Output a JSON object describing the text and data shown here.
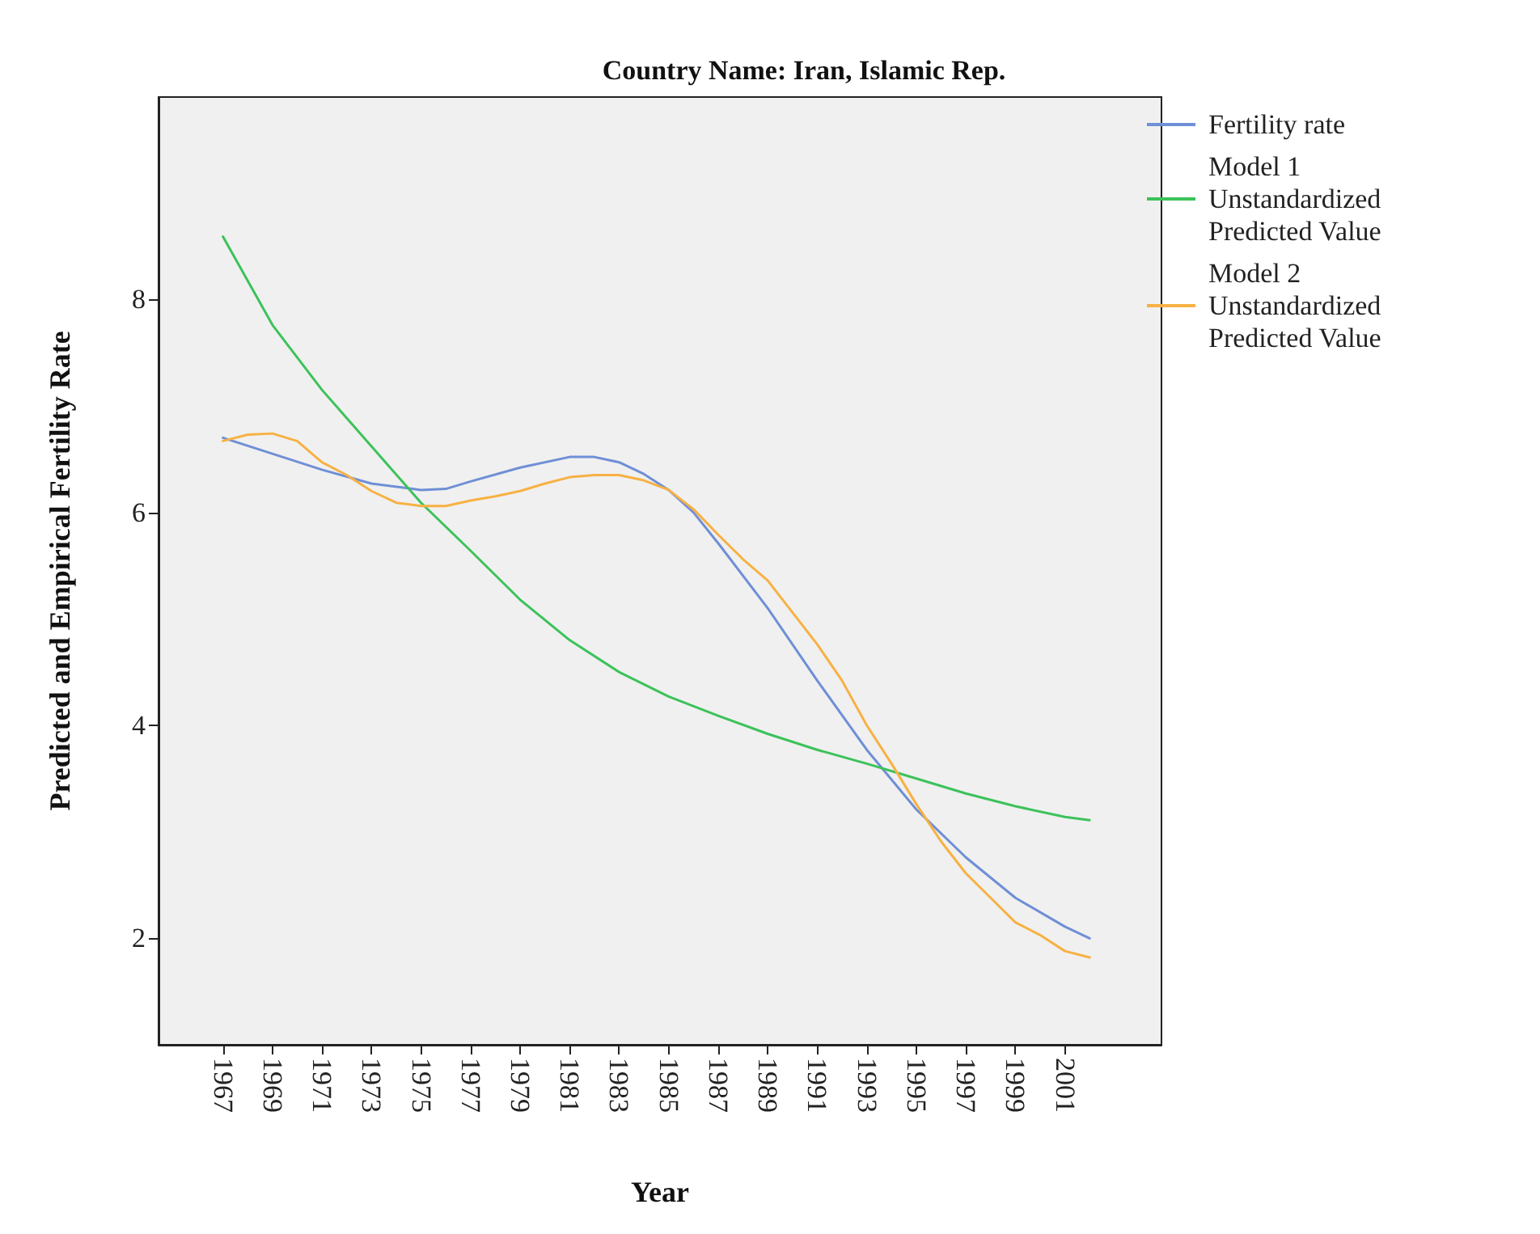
{
  "chart_data": {
    "type": "line",
    "title": "Country Name: Iran, Islamic Rep.",
    "xlabel": "Year",
    "ylabel": "Predicted and Empirical Fertility Rate",
    "xlim": [
      1964.4,
      2004.9
    ],
    "xticks": [
      1967,
      1969,
      1971,
      1973,
      1975,
      1977,
      1979,
      1981,
      1983,
      1985,
      1987,
      1989,
      1991,
      1993,
      1995,
      1997,
      1999,
      2001
    ],
    "ylim": [
      1,
      9.9
    ],
    "yticks": [
      2,
      4,
      6,
      8
    ],
    "grid": false,
    "legend": "top right",
    "marker": "none",
    "line_style": "solid",
    "series": [
      {
        "name": "Fertility rate",
        "color": "#6f8fd6",
        "x": [
          1967,
          1969,
          1971,
          1973,
          1975,
          1976,
          1977,
          1979,
          1981,
          1982,
          1983,
          1984,
          1985,
          1986,
          1987,
          1989,
          1991,
          1993,
          1995,
          1997,
          1999,
          2001,
          2002
        ],
        "values": [
          6.7,
          6.55,
          6.4,
          6.27,
          6.21,
          6.22,
          6.29,
          6.42,
          6.52,
          6.52,
          6.47,
          6.36,
          6.21,
          6.0,
          5.71,
          5.1,
          4.42,
          3.77,
          3.21,
          2.76,
          2.38,
          2.11,
          2.0
        ]
      },
      {
        "name": "Model 1 Unstandardized Predicted Value",
        "color": "#3cc25a",
        "x": [
          1967,
          1969,
          1971,
          1973,
          1975,
          1977,
          1979,
          1981,
          1983,
          1985,
          1987,
          1989,
          1991,
          1993,
          1995,
          1997,
          1999,
          2001,
          2002
        ],
        "values": [
          8.59,
          7.76,
          7.15,
          6.62,
          6.09,
          5.64,
          5.18,
          4.8,
          4.5,
          4.27,
          4.09,
          3.92,
          3.77,
          3.64,
          3.5,
          3.36,
          3.24,
          3.14,
          3.11
        ]
      },
      {
        "name": "Model 2 Unstandardized Predicted Value",
        "color": "#f7b143",
        "x": [
          1967,
          1968,
          1969,
          1970,
          1971,
          1972,
          1973,
          1974,
          1975,
          1976,
          1977,
          1978,
          1979,
          1980,
          1981,
          1982,
          1983,
          1984,
          1985,
          1986,
          1987,
          1988,
          1989,
          1990,
          1991,
          1992,
          1993,
          1994,
          1995,
          1996,
          1997,
          1998,
          1999,
          2000,
          2001,
          2002
        ],
        "values": [
          6.67,
          6.73,
          6.74,
          6.67,
          6.47,
          6.35,
          6.2,
          6.09,
          6.06,
          6.06,
          6.11,
          6.15,
          6.2,
          6.27,
          6.33,
          6.35,
          6.35,
          6.3,
          6.21,
          6.03,
          5.79,
          5.56,
          5.36,
          5.06,
          4.76,
          4.42,
          4.0,
          3.64,
          3.26,
          2.91,
          2.61,
          2.38,
          2.15,
          2.03,
          1.88,
          1.82
        ]
      }
    ]
  }
}
